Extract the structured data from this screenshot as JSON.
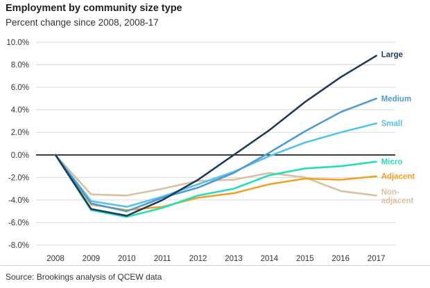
{
  "title": "Employment by community size type",
  "subtitle": "Percent change since 2008, 2008-17",
  "source": "Source: Brookings analysis of QCEW data",
  "chart_data": {
    "type": "line",
    "title": "Employment by community size type",
    "subtitle": "Percent change since 2008, 2008-17",
    "x": [
      "2008",
      "2009",
      "2010",
      "2011",
      "2012",
      "2013",
      "2014",
      "2015",
      "2016",
      "2017"
    ],
    "ylim": [
      -8,
      10
    ],
    "yticks": [
      10,
      8,
      6,
      4,
      2,
      0,
      -2,
      -4,
      -6,
      -8
    ],
    "ytick_labels": [
      "10.0%",
      "8.0%",
      "6.0%",
      "4.0%",
      "2.0%",
      "0.0%",
      "-2.0%",
      "-4.0%",
      "-6.0%",
      "-8.0%"
    ],
    "grid": "horizontal",
    "zero_line": true,
    "legend": "direct labels at line ends",
    "series": [
      {
        "name": "Large",
        "label_lines": [
          "Large"
        ],
        "color": "#203a5c",
        "values": [
          0,
          -4.8,
          -5.4,
          -4.0,
          -2.2,
          0.0,
          2.2,
          4.7,
          6.9,
          8.8
        ]
      },
      {
        "name": "Medium",
        "label_lines": [
          "Medium"
        ],
        "color": "#4f9bd1",
        "values": [
          0,
          -4.3,
          -5.0,
          -3.8,
          -2.9,
          -1.6,
          0.2,
          2.1,
          3.8,
          5.0
        ]
      },
      {
        "name": "Small",
        "label_lines": [
          "Small"
        ],
        "color": "#56c2ea",
        "values": [
          0,
          -4.1,
          -4.6,
          -3.7,
          -2.6,
          -1.5,
          -0.1,
          1.1,
          2.0,
          2.8
        ]
      },
      {
        "name": "Micro",
        "label_lines": [
          "Micro"
        ],
        "color": "#21e0b8",
        "values": [
          0,
          -4.9,
          -5.5,
          -4.7,
          -3.6,
          -3.0,
          -1.8,
          -1.2,
          -1.0,
          -0.6
        ]
      },
      {
        "name": "Adjacent",
        "label_lines": [
          "Adjacent"
        ],
        "color": "#f2a024",
        "values": [
          0,
          -4.4,
          -4.9,
          -4.6,
          -3.8,
          -3.4,
          -2.6,
          -2.1,
          -2.2,
          -1.9
        ]
      },
      {
        "name": "Non-adjacent",
        "label_lines": [
          "Non-",
          "adjacent"
        ],
        "color": "#dcbfa3",
        "values": [
          0,
          -3.5,
          -3.6,
          -3.0,
          -2.3,
          -2.2,
          -1.6,
          -2.0,
          -3.2,
          -3.6
        ]
      }
    ]
  }
}
